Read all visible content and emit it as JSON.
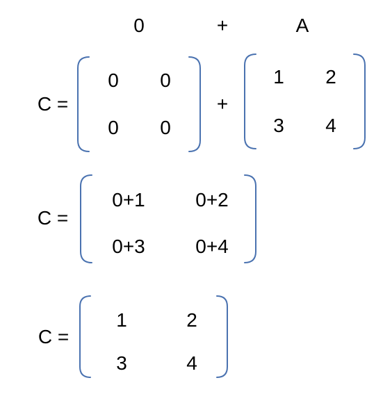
{
  "header": {
    "left_operand": "0",
    "operator": "+",
    "right_operand": "A"
  },
  "bracket_color": "#4a72b0",
  "step1": {
    "lhs": "C =",
    "plus": "+",
    "zero_matrix": [
      [
        "0",
        "0"
      ],
      [
        "0",
        "0"
      ]
    ],
    "matrix_a": [
      [
        "1",
        "2"
      ],
      [
        "3",
        "4"
      ]
    ]
  },
  "step2": {
    "lhs": "C =",
    "matrix": [
      [
        "0+1",
        "0+2"
      ],
      [
        "0+3",
        "0+4"
      ]
    ]
  },
  "step3": {
    "lhs": "C =",
    "matrix": [
      [
        "1",
        "2"
      ],
      [
        "3",
        "4"
      ]
    ]
  }
}
